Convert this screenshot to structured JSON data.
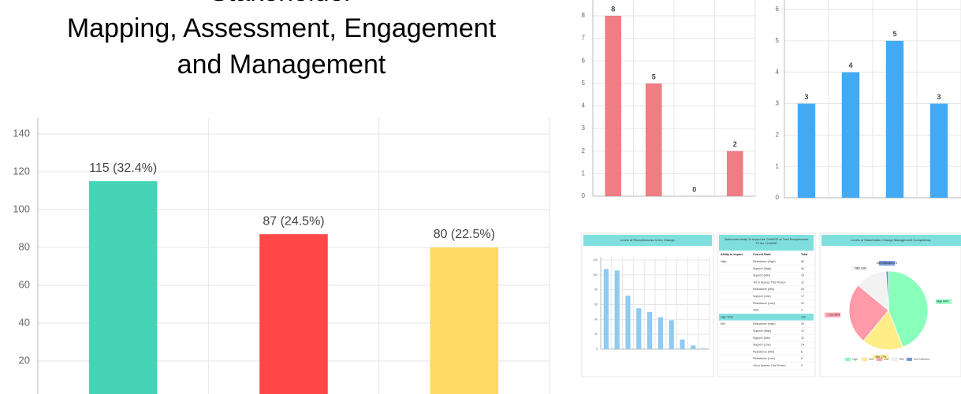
{
  "header": {
    "title_lines": [
      "Stakeholder",
      "Mapping, Assessment, Engagement",
      "and Management"
    ]
  },
  "chart_data": [
    {
      "type": "bar",
      "categories": [
        null,
        null,
        null
      ],
      "values": [
        115,
        87,
        80
      ],
      "value_labels": [
        "115 (32.4%)",
        "87 (24.5%)",
        "80 (22.5%)"
      ],
      "colors": [
        "#45d4b6",
        "#ff4747",
        "#ffd966"
      ],
      "ylim": [
        0,
        140
      ],
      "yticks": [
        20,
        40,
        60,
        80,
        100,
        120,
        140
      ],
      "grid": true
    },
    {
      "type": "bar",
      "categories": [
        null,
        null,
        null,
        null
      ],
      "values": [
        8,
        5,
        0,
        2
      ],
      "color": "#ee7d84",
      "ylim": [
        0,
        8
      ],
      "yticks": [
        0,
        1,
        2,
        3,
        4,
        5,
        6,
        7,
        8
      ],
      "grid": true,
      "data_labels": true
    },
    {
      "type": "bar",
      "categories": [
        null,
        null,
        null,
        null
      ],
      "values": [
        3,
        4,
        5,
        3
      ],
      "color": "#42aaf5",
      "ylim": [
        0,
        6
      ],
      "yticks": [
        0,
        1,
        2,
        3,
        4,
        5,
        6
      ],
      "grid": true,
      "data_labels": true
    },
    {
      "type": "bar",
      "title": "Levels of Receptiveness to the Change",
      "categories": [
        null,
        null,
        null,
        null,
        null,
        null,
        null,
        null,
        null,
        null
      ],
      "values": [
        108,
        106,
        72,
        55,
        50,
        43,
        39,
        13,
        5,
        1
      ],
      "color": "#90caf0",
      "ylim": [
        0,
        120
      ],
      "yticks": [
        0,
        20,
        40,
        60,
        80,
        100,
        120
      ],
      "grid": true
    },
    {
      "type": "pie",
      "title": "Levels of Stakeholder Change Management Competency",
      "categories": [
        "High",
        "Mid",
        "Low",
        "TBD",
        "Not Selected"
      ],
      "values": [
        44,
        17,
        25,
        13,
        1
      ],
      "value_labels": [
        "High 44%",
        "Mid 17%",
        "Low 25%",
        "TBD 13%",
        "Not Selected 1%"
      ],
      "colors": [
        "#88ffbb",
        "#ffee88",
        "#ff9aa8",
        "#f2f2f2",
        "#6a8fd8"
      ],
      "legend": "bottom"
    }
  ],
  "table": {
    "title": "Stakeholder Ability To Impact the CHANGE vs Their Receptiveness TO the CHANGE",
    "columns": [
      "Ability to Impact",
      "Current State",
      "Total"
    ],
    "rows": [
      [
        "High",
        "Resistance (High)",
        56
      ],
      [
        "",
        "Support (High)",
        44
      ],
      [
        "",
        "Support (Mid)",
        19
      ],
      [
        "",
        "Yet to Assess This Person",
        12
      ],
      [
        "",
        "Resistance (Mid)",
        25
      ],
      [
        "",
        "Support (Low)",
        17
      ],
      [
        "",
        "Resistance (Low)",
        22
      ],
      [
        "",
        "TBD",
        4
      ],
      [
        "High Total",
        "",
        199
      ],
      [
        "Mid",
        "Resistance (High)",
        28
      ],
      [
        "",
        "Support (High)",
        12
      ],
      [
        "",
        "Support (Mid)",
        12
      ],
      [
        "",
        "Support (Low)",
        24
      ],
      [
        "",
        "Resistance (Mid)",
        8
      ],
      [
        "",
        "Resistance (Low)",
        6
      ],
      [
        "",
        "Yet to Assess This Person",
        5
      ]
    ]
  }
}
